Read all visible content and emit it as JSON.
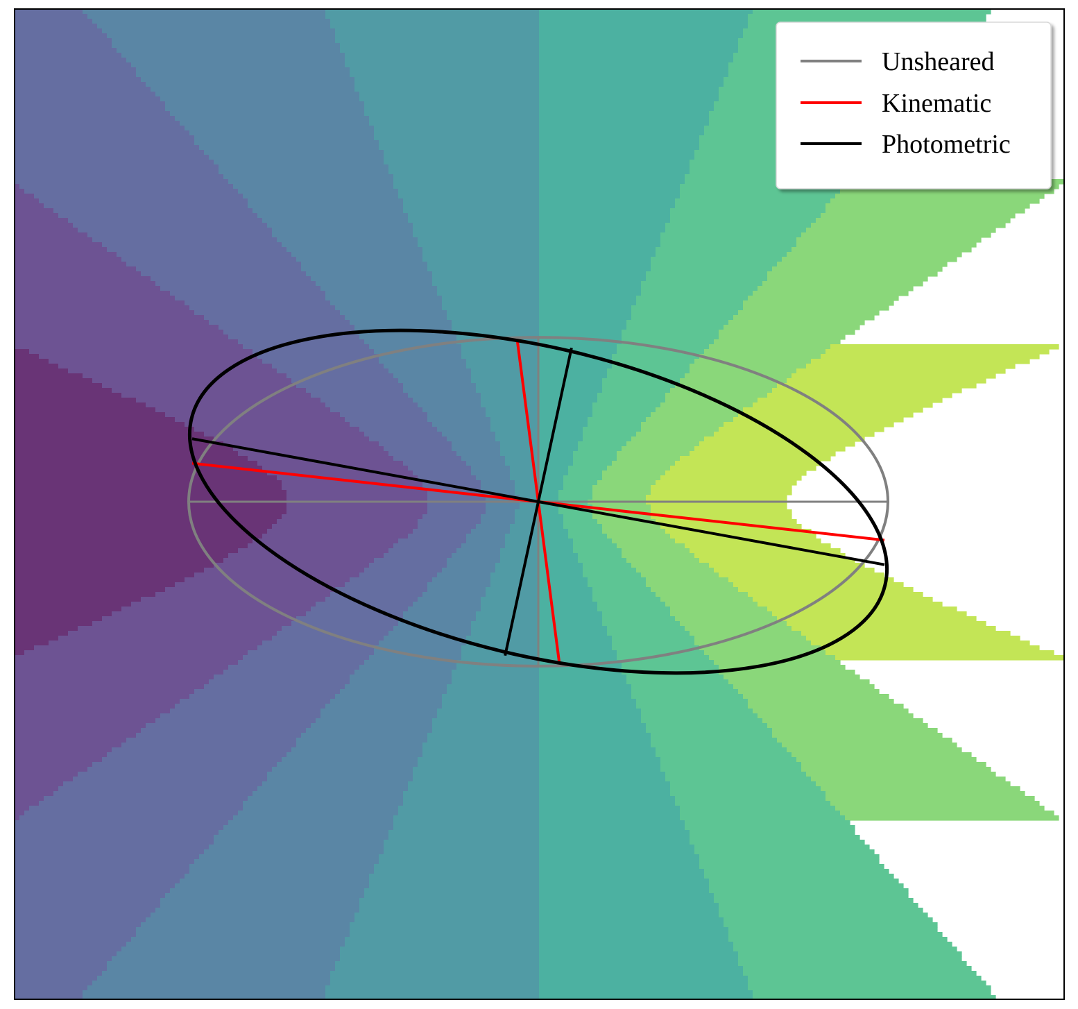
{
  "chart_data": {
    "type": "contour",
    "title": "",
    "xlabel": "",
    "ylabel": "",
    "axes_visible": false,
    "ticks_visible": false,
    "grid": false,
    "colormap": "viridis",
    "colormap_alpha": 0.8,
    "xlim": [
      -1.5,
      1.5
    ],
    "ylim": [
      -1.4,
      1.4
    ],
    "contour_field": "radial velocity of a rotating disk (line-of-sight velocity varies with angle about the centre)",
    "contour_levels": 10,
    "series": [
      {
        "name": "Unsheared",
        "color": "#808080",
        "ellipse": {
          "semi_major": 1.0,
          "semi_minor": 0.47,
          "angle_deg": 0
        },
        "axes": [
          {
            "x": [
              -1.0,
              1.0
            ],
            "y": [
              0.0,
              0.0
            ]
          },
          {
            "x": [
              0.0,
              0.0
            ],
            "y": [
              -0.47,
              0.47
            ]
          }
        ]
      },
      {
        "name": "Kinematic",
        "color": "#ff0000",
        "axes": [
          {
            "x": [
              -0.99,
              0.99
            ],
            "y": [
              0.11,
              -0.11
            ]
          },
          {
            "x": [
              -0.06,
              0.06
            ],
            "y": [
              0.46,
              -0.46
            ]
          }
        ]
      },
      {
        "name": "Photometric",
        "color": "#000000",
        "ellipse": {
          "semi_major": 1.02,
          "semi_minor": 0.44,
          "angle_deg": -13.5
        },
        "axes": [
          {
            "x": [
              -0.99,
              0.99
            ],
            "y": [
              0.18,
              -0.18
            ]
          },
          {
            "x": [
              0.095,
              -0.095
            ],
            "y": [
              0.44,
              -0.44
            ]
          }
        ]
      }
    ],
    "legend": {
      "position": "top-right",
      "entries": [
        {
          "label": "Unsheared",
          "color": "#808080"
        },
        {
          "label": "Kinematic",
          "color": "#ff0000"
        },
        {
          "label": "Photometric",
          "color": "#000000"
        }
      ]
    }
  }
}
